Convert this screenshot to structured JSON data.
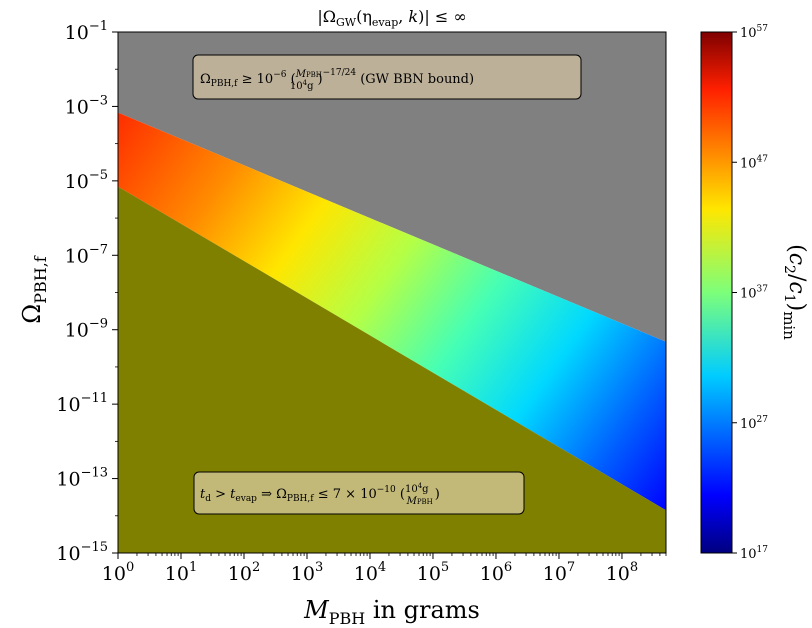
{
  "chart_data": {
    "type": "heatmap",
    "title": "|Ω_GW(η_evap, k)| ≤ ∞",
    "xlabel": "M_PBH in grams",
    "ylabel": "Ω_PBH,f",
    "x_scale": "log",
    "y_scale": "log",
    "xlim": [
      1,
      500000000
    ],
    "ylim": [
      1e-15,
      0.1
    ],
    "x_ticks": [
      {
        "value": 1,
        "base": "10",
        "exp": "0"
      },
      {
        "value": 10,
        "base": "10",
        "exp": "1"
      },
      {
        "value": 100,
        "base": "10",
        "exp": "2"
      },
      {
        "value": 1000,
        "base": "10",
        "exp": "3"
      },
      {
        "value": 10000,
        "base": "10",
        "exp": "4"
      },
      {
        "value": 100000,
        "base": "10",
        "exp": "5"
      },
      {
        "value": 1000000,
        "base": "10",
        "exp": "6"
      },
      {
        "value": 10000000,
        "base": "10",
        "exp": "7"
      },
      {
        "value": 100000000,
        "base": "10",
        "exp": "8"
      }
    ],
    "y_ticks": [
      {
        "value": 0.1,
        "base": "10",
        "exp": "−1"
      },
      {
        "value": 0.001,
        "base": "10",
        "exp": "−3"
      },
      {
        "value": 1e-05,
        "base": "10",
        "exp": "−5"
      },
      {
        "value": 1e-07,
        "base": "10",
        "exp": "−7"
      },
      {
        "value": 1e-09,
        "base": "10",
        "exp": "−9"
      },
      {
        "value": 1e-11,
        "base": "10",
        "exp": "−11"
      },
      {
        "value": 1e-13,
        "base": "10",
        "exp": "−13"
      },
      {
        "value": 1e-15,
        "base": "10",
        "exp": "−15"
      }
    ],
    "regions": {
      "bbn_excluded": {
        "description_label": "Ω_PBH,f ≥ 10^−6 (M_PBH / 10^4 g)^−17/24 (GW BBN bound)",
        "boundary_exponent": -0.7083,
        "boundary_at_1e4g": 1e-06,
        "color": "#808080"
      },
      "no_domination": {
        "description_label": "t_d > t_evap ⇒ Ω_PBH,f ≤ 7 × 10^−10 (10^4 g / M_PBH)",
        "boundary_exponent": -1.0,
        "boundary_at_1e4g": 7e-10,
        "color": "#808000"
      }
    },
    "colorbar": {
      "label": "(c₂/c₁)min",
      "scale": "log",
      "min": 1e+17,
      "max": 1e+57,
      "colormap": "jet",
      "ticks": [
        {
          "value": 1e+17,
          "base": "10",
          "exp": "17"
        },
        {
          "value": 1e+27,
          "base": "10",
          "exp": "27"
        },
        {
          "value": 1e+37,
          "base": "10",
          "exp": "37"
        },
        {
          "value": 1e+47,
          "base": "10",
          "exp": "47"
        },
        {
          "value": 1e+57,
          "base": "10",
          "exp": "57"
        }
      ]
    },
    "colored_band_color_samples": [
      {
        "x": 1,
        "y": 0.0005,
        "color_fraction": 0.98
      },
      {
        "x": 1,
        "y": 3e-06,
        "color_fraction": 0.78
      },
      {
        "x": 1000,
        "y": 1e-08,
        "color_fraction": 0.6
      },
      {
        "x": 100000,
        "y": 1e-09,
        "color_fraction": 0.5
      },
      {
        "x": 10000000,
        "y": 1e-11,
        "color_fraction": 0.28
      },
      {
        "x": 500000000,
        "y": 1e-13,
        "color_fraction": 0.08
      }
    ]
  }
}
